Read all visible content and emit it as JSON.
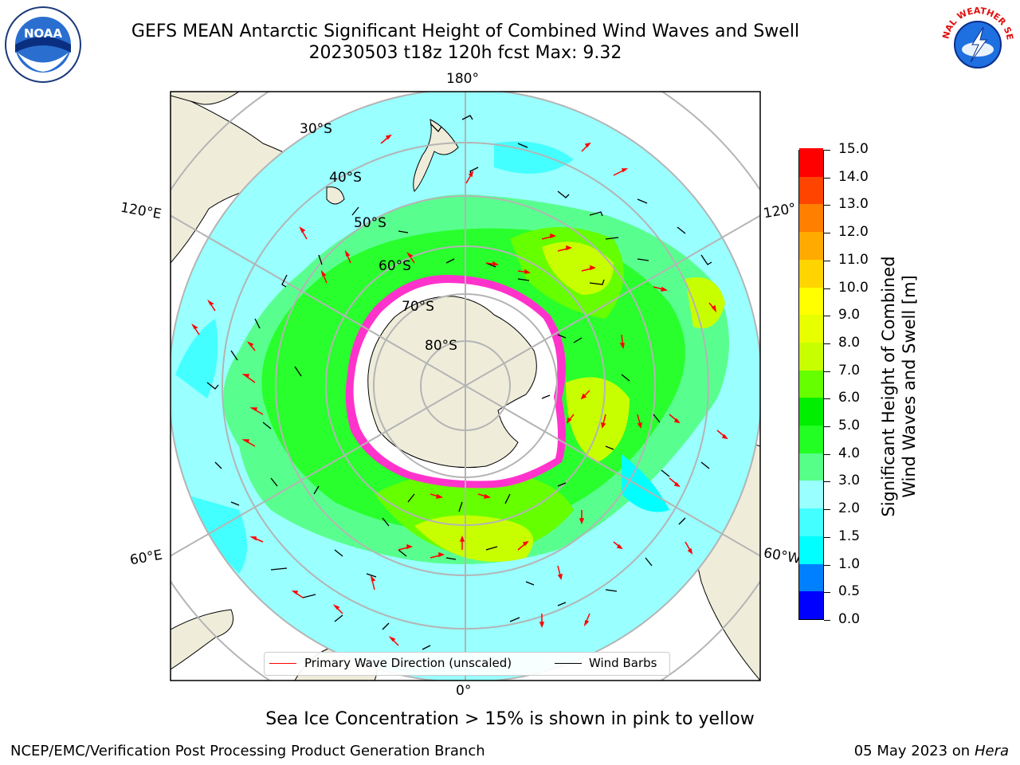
{
  "header": {
    "title": "GEFS MEAN Antarctic Significant Height of Combined Wind Waves and Swell",
    "subtitle": "20230503 t18z 120h fcst   Max: 9.32"
  },
  "map": {
    "projection": "south-polar-stereographic",
    "longitude_labels": {
      "top": "180°",
      "bottom": "0°",
      "upper_left": "120°E",
      "lower_left": "60°E",
      "upper_right": "120°",
      "lower_right": "60°W"
    },
    "latitude_labels": [
      "30°S",
      "40°S",
      "50°S",
      "60°S",
      "70°S",
      "80°S"
    ],
    "colors": {
      "land": "#efedda",
      "ice_shelf": "#ffffff",
      "sea_ice": "#ff33cc",
      "gridline": "#b4b4b4",
      "wave_arrow": "#ff0000",
      "wind_barb": "#000000"
    }
  },
  "colorbar": {
    "title_line1": "Significant Height of Combined",
    "title_line2": "Wind Waves and Swell [m]",
    "unit": "m",
    "levels": [
      "0.0",
      "0.5",
      "1.0",
      "1.5",
      "2.0",
      "3.0",
      "4.0",
      "5.0",
      "6.0",
      "7.0",
      "8.0",
      "9.0",
      "10.0",
      "11.0",
      "12.0",
      "13.0",
      "14.0",
      "15.0"
    ],
    "colors": [
      "#0000ff",
      "#0080ff",
      "#00ffff",
      "#44ffff",
      "#99ffff",
      "#55ff88",
      "#22ff22",
      "#00ee00",
      "#66ff00",
      "#c8ff00",
      "#e8ff00",
      "#ffff00",
      "#ffd400",
      "#ffaa00",
      "#ff7f00",
      "#ff4400",
      "#ff0000"
    ]
  },
  "legend": {
    "wave_label": "Primary Wave Direction (unscaled)",
    "wind_label": "Wind Barbs"
  },
  "note": "Sea Ice Concentration > 15% is shown in pink to yellow",
  "footer": {
    "left": "NCEP/EMC/Verification Post Processing Product Generation Branch",
    "date": "05 May 2023 on",
    "machine": "Hera"
  },
  "logos": {
    "left": "NOAA",
    "right_text": "NATIONAL WEATHER SERVICE"
  }
}
